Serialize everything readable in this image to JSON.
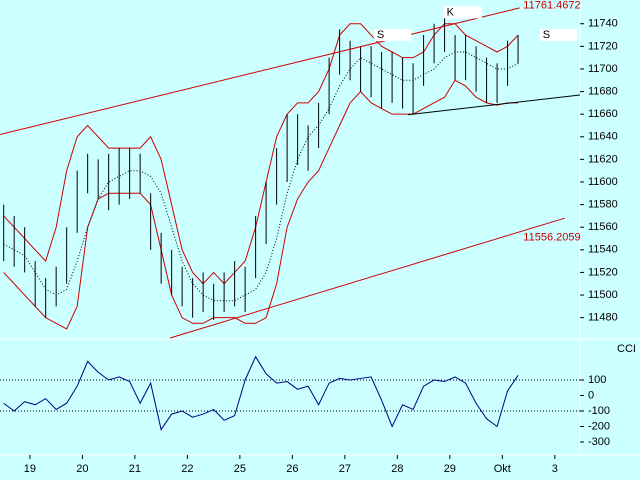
{
  "chart_data": [
    {
      "type": "ohlc",
      "xlim": [
        -0.57,
        10.48
      ],
      "x": [
        -0.5,
        -0.3,
        -0.1,
        0.1,
        0.3,
        0.5,
        0.7,
        0.9,
        1.1,
        1.3,
        1.5,
        1.7,
        1.9,
        2.1,
        2.3,
        2.5,
        2.7,
        2.9,
        3.1,
        3.3,
        3.5,
        3.7,
        3.9,
        4.1,
        4.3,
        4.5,
        4.7,
        4.9,
        5.1,
        5.3,
        5.5,
        5.7,
        5.9,
        6.1,
        6.3,
        6.5,
        6.7,
        6.9,
        7.1,
        7.3,
        7.5,
        7.7,
        7.9,
        8.1,
        8.3,
        8.5,
        8.7,
        8.9,
        9.1,
        9.3
      ],
      "high": [
        11580,
        11570,
        11560,
        11530,
        11515,
        11525,
        11560,
        11610,
        11625,
        11620,
        11625,
        11630,
        11630,
        11625,
        11590,
        11555,
        11540,
        11525,
        11515,
        11520,
        11510,
        11520,
        11530,
        11525,
        11570,
        11600,
        11630,
        11660,
        11660,
        11650,
        11670,
        11710,
        11735,
        11725,
        11720,
        11720,
        11715,
        11715,
        11710,
        11705,
        11730,
        11740,
        11745,
        11730,
        11730,
        11720,
        11710,
        11705,
        11725,
        11730
      ],
      "low": [
        11530,
        11525,
        11520,
        11490,
        11480,
        11490,
        11510,
        11555,
        11590,
        11585,
        11575,
        11580,
        11585,
        11590,
        11540,
        11510,
        11500,
        11490,
        11480,
        11485,
        11478,
        11485,
        11490,
        11485,
        11515,
        11545,
        11580,
        11600,
        11615,
        11610,
        11630,
        11660,
        11695,
        11690,
        11680,
        11675,
        11665,
        11670,
        11665,
        11660,
        11685,
        11705,
        11715,
        11690,
        11690,
        11680,
        11670,
        11670,
        11685,
        11705
      ],
      "color": "#000000",
      "band_upper": [
        11570,
        11560,
        11550,
        11540,
        11530,
        11560,
        11610,
        11640,
        11650,
        11640,
        11630,
        11630,
        11630,
        11630,
        11640,
        11620,
        11580,
        11540,
        11520,
        11510,
        11520,
        11510,
        11520,
        11530,
        11560,
        11600,
        11640,
        11660,
        11670,
        11670,
        11680,
        11700,
        11730,
        11740,
        11740,
        11730,
        11720,
        11715,
        11710,
        11710,
        11715,
        11730,
        11740,
        11740,
        11730,
        11725,
        11720,
        11715,
        11720,
        11730
      ],
      "band_lower": [
        11520,
        11510,
        11500,
        11490,
        11480,
        11475,
        11470,
        11490,
        11560,
        11585,
        11590,
        11590,
        11590,
        11590,
        11580,
        11540,
        11500,
        11480,
        11475,
        11475,
        11480,
        11480,
        11480,
        11475,
        11475,
        11480,
        11510,
        11560,
        11585,
        11600,
        11610,
        11630,
        11650,
        11670,
        11680,
        11670,
        11665,
        11660,
        11660,
        11660,
        11665,
        11670,
        11675,
        11690,
        11685,
        11675,
        11670,
        11668,
        11670,
        11670
      ],
      "band_middle": [
        11545,
        11540,
        11535,
        11520,
        11505,
        11500,
        11505,
        11530,
        11560,
        11585,
        11600,
        11605,
        11610,
        11610,
        11605,
        11590,
        11560,
        11530,
        11510,
        11500,
        11495,
        11495,
        11495,
        11500,
        11505,
        11520,
        11550,
        11590,
        11620,
        11640,
        11650,
        11665,
        11685,
        11700,
        11710,
        11705,
        11700,
        11695,
        11690,
        11690,
        11695,
        11700,
        11710,
        11715,
        11715,
        11710,
        11705,
        11700,
        11700,
        11705
      ],
      "band_color": "#cc0000",
      "ylim": [
        11462,
        11761
      ],
      "yticks": [
        11480,
        11500,
        11520,
        11540,
        11560,
        11580,
        11600,
        11620,
        11640,
        11660,
        11680,
        11700,
        11720,
        11740
      ],
      "trendlines": [
        {
          "x": [
            -0.57,
            9.33
          ],
          "y": [
            11642,
            11754
          ],
          "color": "#cc0000"
        },
        {
          "x": [
            2.67,
            10.19
          ],
          "y": [
            11462,
            11568
          ],
          "color": "#cc0000"
        },
        {
          "x": [
            7.2,
            10.48
          ],
          "y": [
            11659.5,
            11677
          ],
          "color": "#000000"
        }
      ],
      "annotations": [
        {
          "text": "11761.4672",
          "x": 9.4,
          "y": 11756,
          "color": "#cc0000"
        },
        {
          "text": "11556.2059",
          "x": 9.4,
          "y": 11551,
          "color": "#cc0000"
        },
        {
          "text": "S",
          "x": 6.61,
          "y": 11730,
          "color": "#000000"
        },
        {
          "text": "K",
          "x": 7.94,
          "y": 11750,
          "color": "#000000"
        },
        {
          "text": "S",
          "x": 9.77,
          "y": 11730,
          "color": "#000000"
        }
      ]
    },
    {
      "type": "line",
      "title": "CCI",
      "values": [
        -50,
        -100,
        -40,
        -60,
        -20,
        -90,
        -50,
        60,
        220,
        150,
        100,
        120,
        90,
        -50,
        80,
        -220,
        -120,
        -100,
        -140,
        -120,
        -90,
        -160,
        -130,
        100,
        250,
        140,
        80,
        90,
        40,
        60,
        -60,
        80,
        110,
        100,
        110,
        120,
        -30,
        -200,
        -60,
        -90,
        60,
        100,
        90,
        120,
        80,
        -50,
        -150,
        -200,
        30,
        130
      ],
      "color": "#000080",
      "ylim": [
        -384,
        358
      ],
      "yticks": [
        100,
        0,
        -100,
        -200,
        -300
      ],
      "hlines": [
        100,
        -100
      ],
      "xticks": [
        {
          "value": 0,
          "label": "19"
        },
        {
          "value": 1,
          "label": "20"
        },
        {
          "value": 2,
          "label": "21"
        },
        {
          "value": 3,
          "label": "22"
        },
        {
          "value": 4,
          "label": "25"
        },
        {
          "value": 5,
          "label": "26"
        },
        {
          "value": 6,
          "label": "27"
        },
        {
          "value": 7,
          "label": "28"
        },
        {
          "value": 8,
          "label": "29"
        },
        {
          "value": 9,
          "label": "Okt"
        },
        {
          "value": 10,
          "label": "3"
        }
      ]
    }
  ]
}
